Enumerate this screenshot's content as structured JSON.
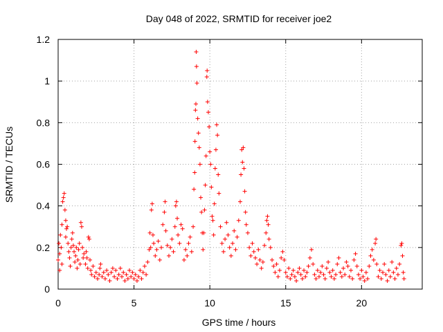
{
  "chart_data": {
    "type": "scatter",
    "title": "Day 048 of 2022, SRMTID for receiver joe2",
    "xlabel": "GPS time / hours",
    "ylabel": "SRMTID / TECUs",
    "xlim": [
      0,
      24
    ],
    "ylim": [
      0,
      1.2
    ],
    "xticks": [
      0,
      5,
      10,
      15,
      20
    ],
    "xtick_labels": [
      "0",
      "5",
      "10",
      "15",
      "20"
    ],
    "yticks": [
      0,
      0.2,
      0.4,
      0.6,
      0.8,
      1.0,
      1.2
    ],
    "ytick_labels": [
      "0",
      "0.2",
      "0.4",
      "0.6",
      "0.8",
      "1",
      "1.2"
    ],
    "grid": true,
    "marker": "+",
    "color": "#ff0000",
    "series": [
      {
        "name": "joe2",
        "points": [
          [
            0.0,
            0.14
          ],
          [
            0.05,
            0.22
          ],
          [
            0.1,
            0.17
          ],
          [
            0.1,
            0.09
          ],
          [
            0.15,
            0.26
          ],
          [
            0.2,
            0.2
          ],
          [
            0.25,
            0.31
          ],
          [
            0.25,
            0.12
          ],
          [
            0.3,
            0.42
          ],
          [
            0.35,
            0.44
          ],
          [
            0.4,
            0.46
          ],
          [
            0.45,
            0.38
          ],
          [
            0.5,
            0.33
          ],
          [
            0.5,
            0.25
          ],
          [
            0.55,
            0.29
          ],
          [
            0.6,
            0.3
          ],
          [
            0.65,
            0.22
          ],
          [
            0.7,
            0.18
          ],
          [
            0.75,
            0.15
          ],
          [
            0.8,
            0.11
          ],
          [
            0.85,
            0.2
          ],
          [
            0.9,
            0.24
          ],
          [
            0.95,
            0.27
          ],
          [
            1.0,
            0.21
          ],
          [
            1.05,
            0.18
          ],
          [
            1.1,
            0.13
          ],
          [
            1.15,
            0.16
          ],
          [
            1.2,
            0.2
          ],
          [
            1.25,
            0.1
          ],
          [
            1.3,
            0.14
          ],
          [
            1.35,
            0.19
          ],
          [
            1.4,
            0.22
          ],
          [
            1.45,
            0.12
          ],
          [
            1.5,
            0.32
          ],
          [
            1.55,
            0.3
          ],
          [
            1.6,
            0.2
          ],
          [
            1.65,
            0.15
          ],
          [
            1.7,
            0.17
          ],
          [
            1.8,
            0.12
          ],
          [
            1.85,
            0.18
          ],
          [
            1.9,
            0.15
          ],
          [
            1.95,
            0.1
          ],
          [
            2.0,
            0.25
          ],
          [
            2.05,
            0.24
          ],
          [
            2.1,
            0.14
          ],
          [
            2.15,
            0.09
          ],
          [
            2.2,
            0.07
          ],
          [
            2.3,
            0.11
          ],
          [
            2.4,
            0.06
          ],
          [
            2.5,
            0.08
          ],
          [
            2.6,
            0.05
          ],
          [
            2.7,
            0.07
          ],
          [
            2.75,
            0.1
          ],
          [
            2.8,
            0.12
          ],
          [
            2.9,
            0.06
          ],
          [
            3.0,
            0.08
          ],
          [
            3.1,
            0.05
          ],
          [
            3.2,
            0.09
          ],
          [
            3.3,
            0.07
          ],
          [
            3.4,
            0.04
          ],
          [
            3.5,
            0.08
          ],
          [
            3.6,
            0.1
          ],
          [
            3.7,
            0.06
          ],
          [
            3.8,
            0.09
          ],
          [
            3.9,
            0.05
          ],
          [
            4.0,
            0.07
          ],
          [
            4.1,
            0.1
          ],
          [
            4.2,
            0.06
          ],
          [
            4.3,
            0.08
          ],
          [
            4.4,
            0.04
          ],
          [
            4.5,
            0.07
          ],
          [
            4.6,
            0.05
          ],
          [
            4.7,
            0.09
          ],
          [
            4.8,
            0.06
          ],
          [
            4.9,
            0.08
          ],
          [
            5.0,
            0.05
          ],
          [
            5.1,
            0.07
          ],
          [
            5.2,
            0.04
          ],
          [
            5.3,
            0.06
          ],
          [
            5.4,
            0.09
          ],
          [
            5.5,
            0.05
          ],
          [
            5.6,
            0.08
          ],
          [
            5.7,
            0.11
          ],
          [
            5.8,
            0.07
          ],
          [
            5.9,
            0.13
          ],
          [
            6.0,
            0.19
          ],
          [
            6.05,
            0.27
          ],
          [
            6.1,
            0.2
          ],
          [
            6.15,
            0.38
          ],
          [
            6.2,
            0.41
          ],
          [
            6.25,
            0.26
          ],
          [
            6.3,
            0.22
          ],
          [
            6.4,
            0.16
          ],
          [
            6.5,
            0.19
          ],
          [
            6.6,
            0.23
          ],
          [
            6.7,
            0.14
          ],
          [
            6.8,
            0.2
          ],
          [
            6.9,
            0.31
          ],
          [
            7.0,
            0.37
          ],
          [
            7.05,
            0.42
          ],
          [
            7.1,
            0.28
          ],
          [
            7.2,
            0.21
          ],
          [
            7.3,
            0.16
          ],
          [
            7.4,
            0.2
          ],
          [
            7.5,
            0.24
          ],
          [
            7.6,
            0.18
          ],
          [
            7.7,
            0.3
          ],
          [
            7.75,
            0.4
          ],
          [
            7.8,
            0.42
          ],
          [
            7.85,
            0.34
          ],
          [
            7.9,
            0.26
          ],
          [
            8.0,
            0.22
          ],
          [
            8.1,
            0.31
          ],
          [
            8.2,
            0.29
          ],
          [
            8.3,
            0.14
          ],
          [
            8.4,
            0.19
          ],
          [
            8.5,
            0.16
          ],
          [
            8.6,
            0.22
          ],
          [
            8.7,
            0.25
          ],
          [
            8.8,
            0.18
          ],
          [
            8.9,
            0.3
          ],
          [
            8.95,
            0.48
          ],
          [
            9.0,
            0.56
          ],
          [
            9.02,
            0.71
          ],
          [
            9.05,
            0.86
          ],
          [
            9.08,
            0.89
          ],
          [
            9.1,
            1.14
          ],
          [
            9.12,
            1.07
          ],
          [
            9.15,
            0.99
          ],
          [
            9.2,
            0.82
          ],
          [
            9.25,
            0.75
          ],
          [
            9.3,
            0.68
          ],
          [
            9.35,
            0.6
          ],
          [
            9.4,
            0.44
          ],
          [
            9.45,
            0.37
          ],
          [
            9.5,
            0.27
          ],
          [
            9.55,
            0.19
          ],
          [
            9.6,
            0.27
          ],
          [
            9.65,
            0.38
          ],
          [
            9.7,
            0.5
          ],
          [
            9.75,
            0.64
          ],
          [
            9.8,
            1.02
          ],
          [
            9.82,
            1.05
          ],
          [
            9.85,
            0.9
          ],
          [
            9.9,
            0.85
          ],
          [
            9.95,
            0.78
          ],
          [
            10.0,
            0.66
          ],
          [
            10.05,
            0.6
          ],
          [
            10.1,
            0.49
          ],
          [
            10.15,
            0.35
          ],
          [
            10.2,
            0.33
          ],
          [
            10.25,
            0.26
          ],
          [
            10.3,
            0.41
          ],
          [
            10.35,
            0.58
          ],
          [
            10.4,
            0.67
          ],
          [
            10.45,
            0.79
          ],
          [
            10.5,
            0.74
          ],
          [
            10.55,
            0.55
          ],
          [
            10.6,
            0.46
          ],
          [
            10.7,
            0.3
          ],
          [
            10.8,
            0.22
          ],
          [
            10.9,
            0.18
          ],
          [
            11.0,
            0.24
          ],
          [
            11.1,
            0.32
          ],
          [
            11.2,
            0.26
          ],
          [
            11.3,
            0.2
          ],
          [
            11.4,
            0.16
          ],
          [
            11.5,
            0.22
          ],
          [
            11.6,
            0.28
          ],
          [
            11.7,
            0.19
          ],
          [
            11.8,
            0.25
          ],
          [
            11.9,
            0.33
          ],
          [
            12.0,
            0.42
          ],
          [
            12.05,
            0.55
          ],
          [
            12.1,
            0.67
          ],
          [
            12.15,
            0.61
          ],
          [
            12.2,
            0.68
          ],
          [
            12.25,
            0.58
          ],
          [
            12.3,
            0.47
          ],
          [
            12.35,
            0.37
          ],
          [
            12.4,
            0.31
          ],
          [
            12.5,
            0.27
          ],
          [
            12.6,
            0.2
          ],
          [
            12.7,
            0.16
          ],
          [
            12.8,
            0.22
          ],
          [
            12.9,
            0.18
          ],
          [
            13.0,
            0.15
          ],
          [
            13.1,
            0.12
          ],
          [
            13.2,
            0.19
          ],
          [
            13.3,
            0.14
          ],
          [
            13.4,
            0.1
          ],
          [
            13.5,
            0.13
          ],
          [
            13.6,
            0.21
          ],
          [
            13.7,
            0.27
          ],
          [
            13.75,
            0.33
          ],
          [
            13.8,
            0.35
          ],
          [
            13.85,
            0.31
          ],
          [
            13.9,
            0.24
          ],
          [
            14.0,
            0.2
          ],
          [
            14.1,
            0.14
          ],
          [
            14.2,
            0.11
          ],
          [
            14.3,
            0.08
          ],
          [
            14.4,
            0.12
          ],
          [
            14.5,
            0.06
          ],
          [
            14.6,
            0.09
          ],
          [
            14.7,
            0.15
          ],
          [
            14.8,
            0.18
          ],
          [
            14.9,
            0.14
          ],
          [
            15.0,
            0.08
          ],
          [
            15.1,
            0.06
          ],
          [
            15.2,
            0.1
          ],
          [
            15.3,
            0.05
          ],
          [
            15.4,
            0.07
          ],
          [
            15.5,
            0.09
          ],
          [
            15.6,
            0.06
          ],
          [
            15.7,
            0.04
          ],
          [
            15.8,
            0.08
          ],
          [
            15.9,
            0.1
          ],
          [
            16.0,
            0.07
          ],
          [
            16.1,
            0.05
          ],
          [
            16.2,
            0.09
          ],
          [
            16.3,
            0.06
          ],
          [
            16.4,
            0.08
          ],
          [
            16.5,
            0.11
          ],
          [
            16.6,
            0.15
          ],
          [
            16.7,
            0.19
          ],
          [
            16.8,
            0.12
          ],
          [
            16.9,
            0.07
          ],
          [
            17.0,
            0.05
          ],
          [
            17.1,
            0.09
          ],
          [
            17.2,
            0.06
          ],
          [
            17.3,
            0.08
          ],
          [
            17.4,
            0.11
          ],
          [
            17.5,
            0.07
          ],
          [
            17.6,
            0.05
          ],
          [
            17.7,
            0.1
          ],
          [
            17.8,
            0.13
          ],
          [
            17.9,
            0.08
          ],
          [
            18.0,
            0.06
          ],
          [
            18.1,
            0.09
          ],
          [
            18.2,
            0.05
          ],
          [
            18.3,
            0.07
          ],
          [
            18.4,
            0.12
          ],
          [
            18.5,
            0.15
          ],
          [
            18.6,
            0.08
          ],
          [
            18.7,
            0.06
          ],
          [
            18.8,
            0.1
          ],
          [
            18.9,
            0.07
          ],
          [
            19.0,
            0.13
          ],
          [
            19.1,
            0.11
          ],
          [
            19.2,
            0.06
          ],
          [
            19.3,
            0.09
          ],
          [
            19.4,
            0.05
          ],
          [
            19.5,
            0.14
          ],
          [
            19.6,
            0.17
          ],
          [
            19.7,
            0.11
          ],
          [
            19.8,
            0.07
          ],
          [
            19.9,
            0.05
          ],
          [
            20.0,
            0.09
          ],
          [
            20.1,
            0.06
          ],
          [
            20.2,
            0.04
          ],
          [
            20.3,
            0.08
          ],
          [
            20.4,
            0.05
          ],
          [
            20.5,
            0.11
          ],
          [
            20.6,
            0.16
          ],
          [
            20.7,
            0.19
          ],
          [
            20.8,
            0.14
          ],
          [
            20.9,
            0.22
          ],
          [
            20.95,
            0.24
          ],
          [
            21.0,
            0.12
          ],
          [
            21.1,
            0.06
          ],
          [
            21.2,
            0.09
          ],
          [
            21.3,
            0.05
          ],
          [
            21.4,
            0.08
          ],
          [
            21.5,
            0.12
          ],
          [
            21.6,
            0.07
          ],
          [
            21.7,
            0.04
          ],
          [
            21.8,
            0.09
          ],
          [
            21.9,
            0.06
          ],
          [
            22.0,
            0.13
          ],
          [
            22.1,
            0.08
          ],
          [
            22.2,
            0.05
          ],
          [
            22.3,
            0.1
          ],
          [
            22.4,
            0.07
          ],
          [
            22.5,
            0.12
          ],
          [
            22.6,
            0.21
          ],
          [
            22.65,
            0.22
          ],
          [
            22.7,
            0.16
          ],
          [
            22.75,
            0.08
          ],
          [
            22.8,
            0.05
          ]
        ]
      }
    ]
  }
}
